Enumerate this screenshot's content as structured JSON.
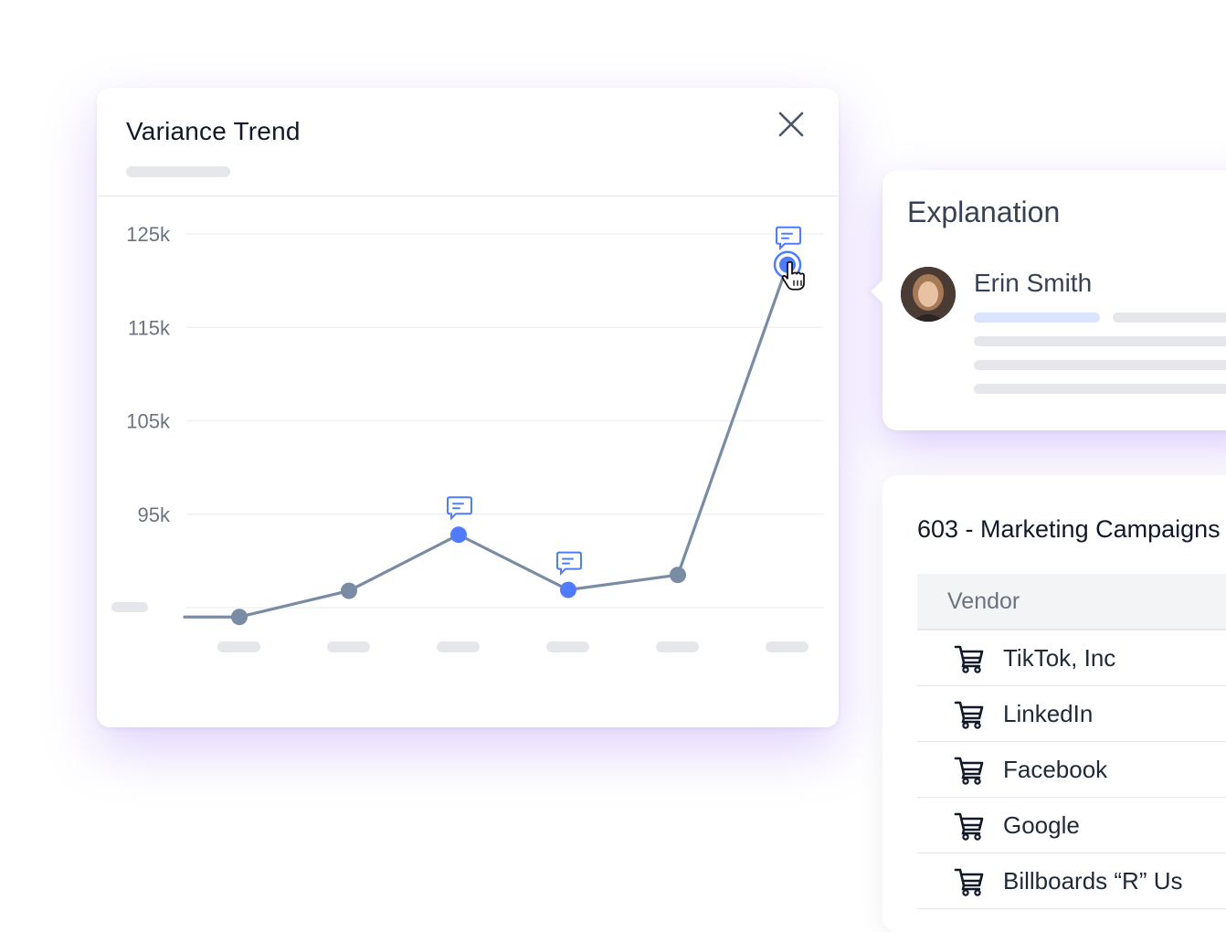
{
  "trend": {
    "title": "Variance Trend",
    "close_icon": "close-icon",
    "comment_icon": "comment-icon",
    "accent_color": "#4f7cff",
    "line_color": "#7a8ca3"
  },
  "chart_data": {
    "type": "line",
    "title": "Variance Trend",
    "y_ticks": [
      "125k",
      "115k",
      "105k",
      "95k"
    ],
    "ylim": [
      85000,
      125000
    ],
    "grid": true,
    "points": [
      {
        "x": 1,
        "y": 84000,
        "highlight": false,
        "comment": false
      },
      {
        "x": 2,
        "y": 86800,
        "highlight": false,
        "comment": false
      },
      {
        "x": 3,
        "y": 92800,
        "highlight": true,
        "comment": true
      },
      {
        "x": 4,
        "y": 86900,
        "highlight": true,
        "comment": true
      },
      {
        "x": 5,
        "y": 88500,
        "highlight": false,
        "comment": false
      },
      {
        "x": 6,
        "y": 121700,
        "highlight": true,
        "comment": true,
        "selected": true
      }
    ]
  },
  "explanation": {
    "title": "Explanation",
    "author": "Erin Smith"
  },
  "vendors": {
    "title": "603 - Marketing Campaigns",
    "column_header": "Vendor",
    "cart_icon": "cart-icon",
    "rows": [
      "TikTok, Inc",
      "LinkedIn",
      "Facebook",
      "Google",
      "Billboards “R” Us"
    ]
  }
}
